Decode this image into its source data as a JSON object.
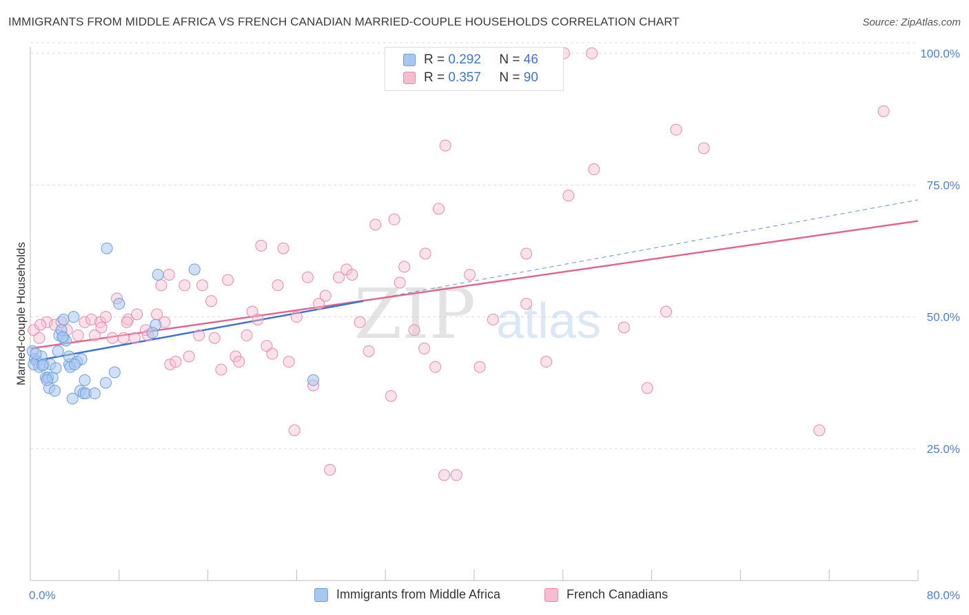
{
  "title": "IMMIGRANTS FROM MIDDLE AFRICA VS FRENCH CANADIAN MARRIED-COUPLE HOUSEHOLDS CORRELATION CHART",
  "source": "Source: ZipAtlas.com",
  "watermark": {
    "zip": "ZIP",
    "atlas": "atlas"
  },
  "legend": {
    "r_label": "R =",
    "n_label": "N =",
    "series1": {
      "r": "0.292",
      "n": "46"
    },
    "series2": {
      "r": "0.357",
      "n": "90"
    }
  },
  "colors": {
    "blue_fill": "#a9c6ef",
    "blue_stroke": "#6b9ee0",
    "blue_line": "#3a72d1",
    "pink_fill": "#f6bdd0",
    "pink_stroke": "#e88aab",
    "pink_line": "#e0668f",
    "grid": "#dddddd",
    "tick_text": "#4a7fd4"
  },
  "chart_data": {
    "type": "scatter",
    "title": "IMMIGRANTS FROM MIDDLE AFRICA VS FRENCH CANADIAN MARRIED-COUPLE HOUSEHOLDS CORRELATION CHART",
    "xlabel": "",
    "ylabel": "Married-couple Households",
    "xlim": [
      0,
      80
    ],
    "ylim": [
      0,
      102
    ],
    "x_ticks": [
      "0.0%",
      "80.0%"
    ],
    "y_ticks": [
      {
        "value": 25,
        "label": "25.0%"
      },
      {
        "value": 50,
        "label": "50.0%"
      },
      {
        "value": 75,
        "label": "75.0%"
      },
      {
        "value": 100,
        "label": "100.0%"
      }
    ],
    "grid": true,
    "series": [
      {
        "name": "Immigrants from Middle Africa",
        "color": "#a9c6ef",
        "trend": {
          "x0": 0,
          "y0": 41.5,
          "x1": 30,
          "y1": 53.0,
          "dashed_to": {
            "x": 80,
            "y": 72.2
          }
        },
        "points": [
          [
            0.2,
            43.5
          ],
          [
            0.4,
            42.0
          ],
          [
            0.6,
            41.5
          ],
          [
            0.8,
            40.5
          ],
          [
            1.0,
            42.5
          ],
          [
            1.2,
            41.0
          ],
          [
            1.4,
            38.5
          ],
          [
            1.6,
            38.5
          ],
          [
            1.7,
            36.5
          ],
          [
            1.8,
            41.0
          ],
          [
            2.0,
            38.5
          ],
          [
            2.2,
            36.0
          ],
          [
            2.5,
            43.5
          ],
          [
            2.6,
            46.5
          ],
          [
            2.8,
            47.5
          ],
          [
            3.0,
            49.5
          ],
          [
            3.0,
            46.0
          ],
          [
            3.2,
            45.5
          ],
          [
            3.5,
            41.0
          ],
          [
            3.5,
            42.5
          ],
          [
            3.6,
            40.5
          ],
          [
            3.8,
            34.5
          ],
          [
            3.9,
            50.0
          ],
          [
            4.2,
            41.5
          ],
          [
            4.5,
            36.0
          ],
          [
            4.6,
            42.0
          ],
          [
            4.8,
            35.5
          ],
          [
            4.9,
            38.0
          ],
          [
            5.0,
            35.5
          ],
          [
            5.8,
            35.5
          ],
          [
            6.8,
            37.5
          ],
          [
            6.9,
            63.0
          ],
          [
            7.6,
            39.5
          ],
          [
            8.0,
            52.5
          ],
          [
            11.3,
            48.5
          ],
          [
            11.5,
            58.0
          ],
          [
            11.0,
            47.0
          ],
          [
            14.8,
            59.0
          ],
          [
            25.5,
            38.0
          ],
          [
            0.3,
            41.0
          ],
          [
            0.5,
            43.0
          ],
          [
            1.1,
            40.8
          ],
          [
            2.9,
            46.2
          ],
          [
            4.0,
            41.0
          ],
          [
            2.3,
            40.3
          ],
          [
            1.5,
            38.0
          ]
        ]
      },
      {
        "name": "French Canadians",
        "color": "#f6bdd0",
        "trend": {
          "x0": 0,
          "y0": 44.0,
          "x1": 80,
          "y1": 68.2
        },
        "points": [
          [
            0.3,
            47.5
          ],
          [
            0.8,
            46.0
          ],
          [
            1.5,
            49.0
          ],
          [
            2.2,
            48.5
          ],
          [
            2.8,
            49.0
          ],
          [
            3.3,
            47.5
          ],
          [
            4.3,
            46.5
          ],
          [
            4.9,
            49.0
          ],
          [
            5.5,
            49.5
          ],
          [
            5.8,
            46.5
          ],
          [
            6.3,
            49.0
          ],
          [
            6.4,
            48.0
          ],
          [
            6.8,
            50.0
          ],
          [
            7.4,
            46.0
          ],
          [
            7.8,
            53.5
          ],
          [
            8.4,
            46.0
          ],
          [
            8.8,
            49.5
          ],
          [
            9.6,
            50.5
          ],
          [
            9.4,
            46.0
          ],
          [
            10.4,
            47.5
          ],
          [
            10.6,
            46.5
          ],
          [
            11.4,
            50.5
          ],
          [
            12.1,
            49.0
          ],
          [
            12.6,
            41.0
          ],
          [
            13.1,
            41.5
          ],
          [
            11.8,
            56.0
          ],
          [
            13.9,
            56.0
          ],
          [
            14.3,
            42.5
          ],
          [
            15.2,
            46.5
          ],
          [
            15.5,
            56.0
          ],
          [
            16.3,
            53.0
          ],
          [
            16.6,
            46.0
          ],
          [
            17.2,
            40.0
          ],
          [
            17.8,
            57.0
          ],
          [
            18.5,
            42.5
          ],
          [
            18.8,
            41.5
          ],
          [
            19.5,
            46.5
          ],
          [
            20.0,
            51.0
          ],
          [
            20.5,
            49.5
          ],
          [
            20.8,
            63.5
          ],
          [
            21.3,
            44.5
          ],
          [
            21.8,
            43.0
          ],
          [
            22.3,
            56.0
          ],
          [
            22.8,
            63.0
          ],
          [
            23.3,
            41.5
          ],
          [
            24.0,
            50.0
          ],
          [
            25.0,
            57.5
          ],
          [
            25.5,
            37.0
          ],
          [
            26.0,
            52.5
          ],
          [
            26.6,
            54.0
          ],
          [
            27.8,
            57.5
          ],
          [
            28.5,
            59.0
          ],
          [
            29.0,
            58.0
          ],
          [
            29.7,
            49.0
          ],
          [
            30.5,
            43.5
          ],
          [
            31.1,
            67.5
          ],
          [
            32.5,
            35.0
          ],
          [
            32.8,
            68.5
          ],
          [
            33.3,
            56.5
          ],
          [
            33.7,
            59.5
          ],
          [
            34.6,
            47.5
          ],
          [
            35.5,
            44.0
          ],
          [
            35.6,
            62.0
          ],
          [
            36.5,
            40.5
          ],
          [
            37.3,
            20.0
          ],
          [
            36.8,
            70.5
          ],
          [
            37.4,
            82.5
          ],
          [
            38.4,
            20.0
          ],
          [
            39.6,
            58.0
          ],
          [
            40.5,
            40.5
          ],
          [
            41.7,
            49.5
          ],
          [
            44.7,
            52.5
          ],
          [
            44.7,
            62.0
          ],
          [
            46.5,
            41.5
          ],
          [
            48.1,
            100.0
          ],
          [
            48.5,
            73.0
          ],
          [
            50.6,
            100.0
          ],
          [
            50.8,
            78.0
          ],
          [
            53.5,
            48.0
          ],
          [
            55.6,
            36.5
          ],
          [
            57.3,
            51.0
          ],
          [
            58.2,
            85.5
          ],
          [
            60.7,
            82.0
          ],
          [
            71.1,
            28.5
          ],
          [
            76.9,
            89.0
          ],
          [
            23.8,
            28.5
          ],
          [
            27.0,
            21.0
          ],
          [
            8.7,
            49.0
          ],
          [
            12.5,
            58.0
          ],
          [
            0.9,
            48.5
          ]
        ]
      }
    ]
  },
  "bottom_legend": {
    "item1": "Immigrants from Middle Africa",
    "item2": "French Canadians"
  }
}
